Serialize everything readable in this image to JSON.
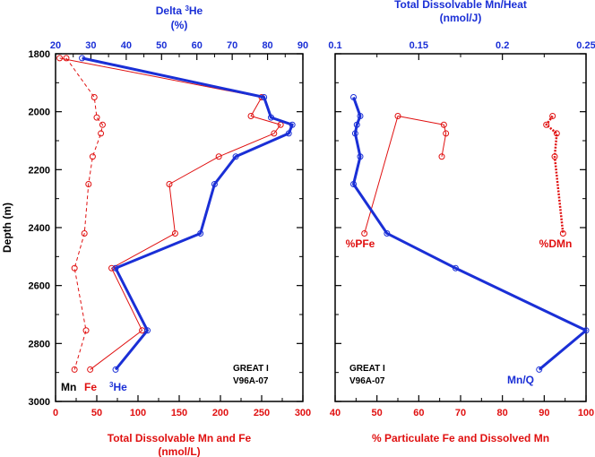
{
  "chart_data": [
    {
      "type": "line",
      "title": "GREAT I V96A-07",
      "station_label": [
        "GREAT I",
        "V96A-07"
      ],
      "ylabel": "Depth (m)",
      "ylim": [
        1800,
        3000
      ],
      "yticks": [
        1800,
        2000,
        2200,
        2400,
        2600,
        2800,
        3000
      ],
      "top_axis": {
        "label_line1": "Delta",
        "label_sup": "3",
        "label_tail": "He",
        "label_line2": "(%)",
        "range": [
          20,
          90
        ],
        "ticks": [
          20,
          30,
          40,
          50,
          60,
          70,
          80,
          90
        ],
        "color": "#1a2fd6"
      },
      "bottom_axis": {
        "label_line1": "Total Dissolvable Mn and Fe",
        "label_line2": "(nmol/L)",
        "range": [
          0,
          300
        ],
        "ticks": [
          0,
          50,
          100,
          150,
          200,
          250,
          300
        ],
        "color": "#e01010"
      },
      "legend": {
        "mn": "Mn",
        "fe": "Fe",
        "he_sup": "3",
        "he_tail": "He"
      },
      "series": [
        {
          "name": "Mn",
          "axis": "bottom",
          "style": "solid-thin",
          "color": "#e01010",
          "points": [
            [
              5,
              1815
            ],
            [
              250,
              1950
            ],
            [
              237,
              2015
            ],
            [
              273,
              2045
            ],
            [
              265,
              2075
            ],
            [
              198,
              2155
            ],
            [
              138,
              2250
            ],
            [
              145,
              2420
            ],
            [
              68,
              2540
            ],
            [
              105,
              2755
            ],
            [
              42,
              2890
            ]
          ]
        },
        {
          "name": "Fe",
          "axis": "bottom",
          "style": "dashed",
          "color": "#e01010",
          "points": [
            [
              13,
              1815
            ],
            [
              47,
              1950
            ],
            [
              50,
              2020
            ],
            [
              57,
              2045
            ],
            [
              55,
              2075
            ],
            [
              45,
              2155
            ],
            [
              40,
              2250
            ],
            [
              35,
              2420
            ],
            [
              23,
              2540
            ],
            [
              37,
              2755
            ],
            [
              23,
              2890
            ]
          ]
        },
        {
          "name": "3He",
          "axis": "top",
          "style": "solid-thick",
          "color": "#1a2fd6",
          "points": [
            [
              27.5,
              1815
            ],
            [
              79,
              1950
            ],
            [
              81,
              2020
            ],
            [
              87,
              2045
            ],
            [
              86,
              2075
            ],
            [
              71,
              2155
            ],
            [
              65,
              2250
            ],
            [
              61,
              2420
            ],
            [
              37,
              2540
            ],
            [
              46,
              2755
            ],
            [
              37,
              2890
            ]
          ]
        }
      ]
    },
    {
      "type": "line",
      "title": "GREAT I V96A-07",
      "station_label": [
        "GREAT I",
        "V96A-07"
      ],
      "ylim": [
        1800,
        3000
      ],
      "yticks": [
        1800,
        2000,
        2200,
        2400,
        2600,
        2800,
        3000
      ],
      "top_axis": {
        "label_line1": "Total Dissolvable Mn/Heat",
        "label_line2": "(nmol/J)",
        "range": [
          0.1,
          0.25
        ],
        "ticks": [
          0.1,
          0.15,
          0.2,
          0.25
        ],
        "tick_labels": [
          "0.1",
          "0.15",
          "0.2",
          "0.25"
        ],
        "color": "#1a2fd6"
      },
      "bottom_axis": {
        "label": "% Particulate Fe and Dissolved Mn",
        "range": [
          40,
          100
        ],
        "ticks": [
          40,
          50,
          60,
          70,
          80,
          90,
          100
        ],
        "color": "#e01010"
      },
      "series": [
        {
          "name": "%PFe",
          "label": "%PFe",
          "axis": "bottom",
          "style": "solid-thin",
          "color": "#e01010",
          "points": [
            [
              47,
              2420
            ],
            [
              55,
              2015
            ],
            [
              66,
              2045
            ],
            [
              66.5,
              2075
            ],
            [
              65.5,
              2155
            ]
          ]
        },
        {
          "name": "%DMn",
          "label": "%DMn",
          "axis": "bottom",
          "style": "dotted",
          "color": "#e01010",
          "points": [
            [
              92,
              2015
            ],
            [
              90.5,
              2045
            ],
            [
              93,
              2075
            ],
            [
              92.5,
              2155
            ],
            [
              94.5,
              2420
            ]
          ]
        },
        {
          "name": "Mn/Q",
          "label": "Mn/Q",
          "axis": "top",
          "style": "solid-thick",
          "color": "#1a2fd6",
          "points": [
            [
              0.111,
              1950
            ],
            [
              0.115,
              2015
            ],
            [
              0.113,
              2045
            ],
            [
              0.112,
              2075
            ],
            [
              0.115,
              2155
            ],
            [
              0.111,
              2250
            ],
            [
              0.131,
              2420
            ],
            [
              0.172,
              2540
            ],
            [
              0.25,
              2755
            ],
            [
              0.222,
              2890
            ]
          ]
        }
      ]
    }
  ]
}
